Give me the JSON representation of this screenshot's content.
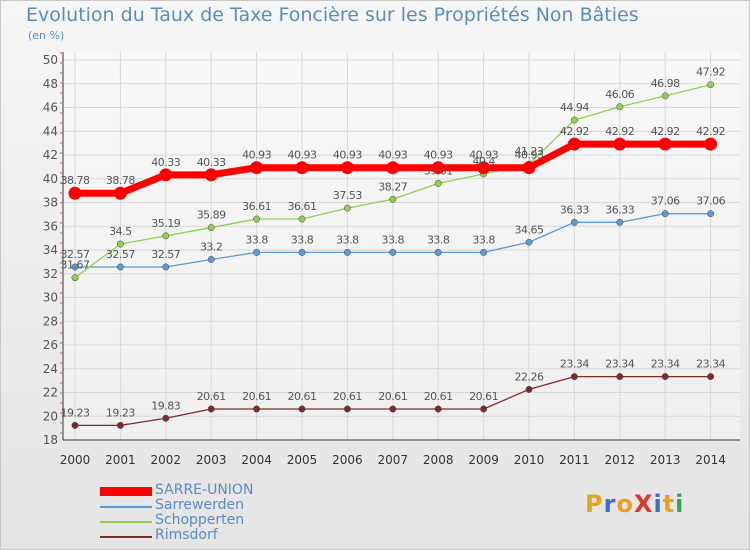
{
  "title": "Evolution du Taux de Taxe Foncière sur les Propriétés Non Bâties",
  "unit": "(en %)",
  "logo": {
    "text": "ProXiti",
    "letters": [
      "P",
      "r",
      "o",
      "X",
      "i",
      "t",
      "i"
    ],
    "colors": [
      "#e8a21d",
      "#3a6fd0",
      "#e8a21d",
      "#d93b2b",
      "#3a6fd0",
      "#e8a21d",
      "#3aa64b"
    ]
  },
  "chart_data": {
    "type": "line",
    "x": [
      "2000",
      "2001",
      "2002",
      "2003",
      "2004",
      "2005",
      "2006",
      "2007",
      "2008",
      "2009",
      "2010",
      "2011",
      "2012",
      "2013",
      "2014"
    ],
    "ylim": [
      18,
      50
    ],
    "yticks": [
      "18",
      "20",
      "22",
      "24",
      "26",
      "28",
      "30",
      "32",
      "34",
      "36",
      "38",
      "40",
      "42",
      "44",
      "46",
      "48",
      "50"
    ],
    "grid": true,
    "legend_position": "bottom-left",
    "series": [
      {
        "name": "SARRE-UNION",
        "color": "#ff0000",
        "width": 7,
        "values": [
          38.78,
          38.78,
          40.33,
          40.33,
          40.93,
          40.93,
          40.93,
          40.93,
          40.93,
          40.93,
          40.93,
          42.92,
          42.92,
          42.92,
          42.92
        ],
        "labels": [
          "38.78",
          "38.78",
          "40.33",
          "40.33",
          "40.93",
          "40.93",
          "40.93",
          "40.93",
          "40.93",
          "40.93",
          "40.93",
          "42.92",
          "42.92",
          "42.92",
          "42.92"
        ]
      },
      {
        "name": "Sarrewerden",
        "color": "#5b9bd5",
        "width": 1.3,
        "values": [
          32.57,
          32.57,
          32.57,
          33.2,
          33.8,
          33.8,
          33.8,
          33.8,
          33.8,
          33.8,
          34.65,
          36.33,
          36.33,
          37.06,
          37.06
        ],
        "labels": [
          "32.57",
          "32.57",
          "32.57",
          "33.2",
          "33.8",
          "33.8",
          "33.8",
          "33.8",
          "33.8",
          "33.8",
          "34.65",
          "36.33",
          "36.33",
          "37.06",
          "37.06"
        ]
      },
      {
        "name": "Schopperten",
        "color": "#8fd14f",
        "width": 1.3,
        "values": [
          31.67,
          34.5,
          35.19,
          35.89,
          36.61,
          36.61,
          37.53,
          38.27,
          39.61,
          40.4,
          41.23,
          44.94,
          46.06,
          46.98,
          47.92
        ],
        "labels": [
          "31.67",
          "34.5",
          "35.19",
          "35.89",
          "36.61",
          "36.61",
          "37.53",
          "38.27",
          "39.61",
          "40.4",
          "41.23",
          "44.94",
          "46.06",
          "46.98",
          "47.92"
        ]
      },
      {
        "name": "Rimsdorf",
        "color": "#7b2c2c",
        "width": 1.3,
        "values": [
          19.23,
          19.23,
          19.83,
          20.61,
          20.61,
          20.61,
          20.61,
          20.61,
          20.61,
          20.61,
          22.26,
          23.34,
          23.34,
          23.34,
          23.34
        ],
        "labels": [
          "19.23",
          "19.23",
          "19.83",
          "20.61",
          "20.61",
          "20.61",
          "20.61",
          "20.61",
          "20.61",
          "20.61",
          "22.26",
          "23.34",
          "23.34",
          "23.34",
          "23.34"
        ]
      }
    ]
  }
}
